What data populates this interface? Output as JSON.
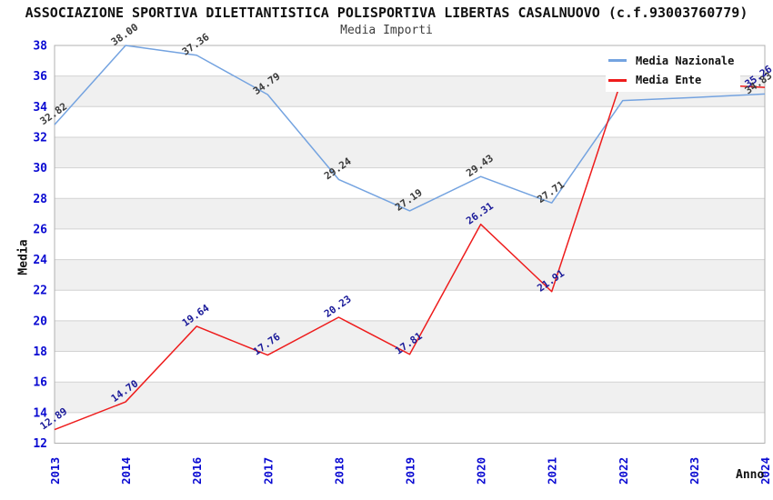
{
  "title": "ASSOCIAZIONE SPORTIVA DILETTANTISTICA POLISPORTIVA LIBERTAS CASALNUOVO (c.f.93003760779)",
  "subtitle": "Media Importi",
  "legend": {
    "items": [
      {
        "label": "Media Nazionale"
      },
      {
        "label": "Media Ente"
      }
    ]
  },
  "axes": {
    "x_title": "Anno",
    "y_title": "Media"
  },
  "colors": {
    "tick_label": "#0a0ad2",
    "grid_line": "#d2d2d2",
    "plot_border": "#b0b0b0",
    "band_gray": "#f0f0f0",
    "background": "#ffffff",
    "nazionale_line": "#74a3e0",
    "ente_line": "#ee1c1c"
  },
  "chart_data": {
    "type": "line",
    "title": "Media Importi",
    "categories": [
      "2013",
      "2014",
      "2016",
      "2017",
      "2018",
      "2019",
      "2020",
      "2021",
      "2022",
      "2023",
      "2024"
    ],
    "series": [
      {
        "name": "Media Nazionale",
        "color": "#74a3e0",
        "label_color": "#3a3a3a",
        "values": [
          32.82,
          38.0,
          37.36,
          34.79,
          29.24,
          27.19,
          29.43,
          27.71,
          34.4,
          34.6,
          34.83
        ],
        "labels": [
          "32.82",
          "38.00",
          "37.36",
          "34.79",
          "29.24",
          "27.19",
          "29.43",
          "27.71",
          null,
          null,
          "34.83"
        ]
      },
      {
        "name": "Media Ente",
        "color": "#ee1c1c",
        "label_color": "#1a1a99",
        "values": [
          12.89,
          14.7,
          19.64,
          17.76,
          20.23,
          17.81,
          26.31,
          21.91,
          36.0,
          35.5,
          35.26
        ],
        "labels": [
          "12.89",
          "14.70",
          "19.64",
          "17.76",
          "20.23",
          "17.81",
          "26.31",
          "21.91",
          null,
          null,
          "35.26"
        ]
      }
    ],
    "xlabel": "Anno",
    "ylabel": "Media",
    "ylim": [
      12,
      38
    ],
    "ytick_step": 2,
    "grid": true,
    "legend_position": "top-right",
    "band_pattern": "alternating white/gray per 2-unit row"
  }
}
